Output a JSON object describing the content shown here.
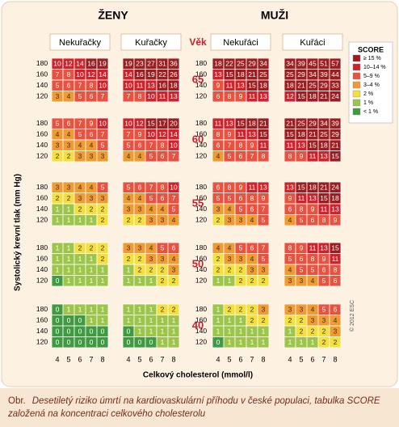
{
  "headers": {
    "women": "ŽENY",
    "men": "MUŽI",
    "age": "Věk"
  },
  "panels": [
    "Nekuřačky",
    "Kuřačky",
    "Nekuřáci",
    "Kuřáci"
  ],
  "ages": [
    65,
    60,
    55,
    50,
    40
  ],
  "bp": [
    180,
    160,
    140,
    120
  ],
  "cholesterol": [
    4,
    5,
    6,
    7,
    8
  ],
  "y_axis_label": "Systolický krevní tlak (mm Hg)",
  "x_axis_label": "Celkový cholesterol (mmol/l)",
  "copyright": "© 2012 ESC",
  "legend": {
    "title": "SCORE",
    "items": [
      {
        "label": "≥ 15 %",
        "min": 15,
        "color": "#9c1c20"
      },
      {
        "label": "10–14 %",
        "min": 10,
        "color": "#d0222a"
      },
      {
        "label": "5–9 %",
        "min": 5,
        "color": "#e8523f"
      },
      {
        "label": "3–4 %",
        "min": 3,
        "color": "#f19a2f"
      },
      {
        "label": "2 %",
        "min": 2,
        "color": "#f5df3c"
      },
      {
        "label": "1 %",
        "min": 1,
        "color": "#9cc54a"
      },
      {
        "label": "< 1 %",
        "min": 0,
        "color": "#3f9a42"
      }
    ]
  },
  "grids": [
    [
      [
        [
          10,
          12,
          14,
          16,
          19
        ],
        [
          7,
          8,
          10,
          12,
          14
        ],
        [
          5,
          6,
          7,
          8,
          10
        ],
        [
          3,
          4,
          5,
          6,
          7
        ]
      ],
      [
        [
          19,
          23,
          27,
          31,
          36
        ],
        [
          14,
          16,
          19,
          22,
          26
        ],
        [
          10,
          11,
          13,
          16,
          18
        ],
        [
          7,
          8,
          10,
          11,
          13
        ]
      ],
      [
        [
          18,
          22,
          25,
          29,
          34
        ],
        [
          13,
          15,
          18,
          21,
          25
        ],
        [
          9,
          11,
          13,
          15,
          18
        ],
        [
          6,
          8,
          9,
          11,
          13
        ]
      ],
      [
        [
          34,
          39,
          45,
          51,
          57
        ],
        [
          25,
          29,
          34,
          39,
          44
        ],
        [
          18,
          21,
          25,
          29,
          33
        ],
        [
          12,
          15,
          18,
          21,
          24
        ]
      ]
    ],
    [
      [
        [
          5,
          6,
          7,
          9,
          10
        ],
        [
          4,
          4,
          5,
          6,
          7
        ],
        [
          3,
          3,
          4,
          4,
          5
        ],
        [
          2,
          2,
          3,
          3,
          3
        ]
      ],
      [
        [
          10,
          12,
          15,
          17,
          20
        ],
        [
          7,
          9,
          10,
          12,
          14
        ],
        [
          5,
          6,
          7,
          8,
          10
        ],
        [
          4,
          4,
          5,
          6,
          7
        ]
      ],
      [
        [
          11,
          13,
          15,
          18,
          21
        ],
        [
          8,
          9,
          11,
          13,
          15
        ],
        [
          6,
          7,
          8,
          9,
          11
        ],
        [
          4,
          5,
          6,
          7,
          8
        ]
      ],
      [
        [
          21,
          25,
          29,
          34,
          39
        ],
        [
          15,
          18,
          21,
          25,
          29
        ],
        [
          11,
          13,
          15,
          18,
          21
        ],
        [
          8,
          9,
          11,
          13,
          15
        ]
      ]
    ],
    [
      [
        [
          3,
          3,
          4,
          4,
          5
        ],
        [
          2,
          2,
          3,
          3,
          3
        ],
        [
          1,
          1,
          2,
          2,
          2
        ],
        [
          1,
          1,
          1,
          1,
          2
        ]
      ],
      [
        [
          5,
          6,
          7,
          8,
          10
        ],
        [
          4,
          4,
          5,
          6,
          7
        ],
        [
          3,
          3,
          4,
          4,
          5
        ],
        [
          2,
          2,
          3,
          3,
          4
        ]
      ],
      [
        [
          6,
          8,
          9,
          11,
          13
        ],
        [
          5,
          5,
          6,
          8,
          9
        ],
        [
          3,
          4,
          5,
          6,
          7
        ],
        [
          2,
          3,
          3,
          4,
          5
        ]
      ],
      [
        [
          13,
          15,
          18,
          21,
          24
        ],
        [
          9,
          11,
          13,
          15,
          18
        ],
        [
          6,
          8,
          9,
          11,
          13
        ],
        [
          4,
          5,
          6,
          8,
          9
        ]
      ]
    ],
    [
      [
        [
          1,
          1,
          2,
          2,
          2
        ],
        [
          1,
          1,
          1,
          1,
          2
        ],
        [
          1,
          1,
          1,
          1,
          1
        ],
        [
          0,
          1,
          1,
          1,
          1
        ]
      ],
      [
        [
          3,
          3,
          4,
          5,
          6
        ],
        [
          2,
          2,
          3,
          3,
          4
        ],
        [
          1,
          2,
          2,
          2,
          3
        ],
        [
          1,
          1,
          1,
          2,
          2
        ]
      ],
      [
        [
          4,
          4,
          5,
          6,
          7
        ],
        [
          2,
          3,
          3,
          4,
          5
        ],
        [
          2,
          2,
          2,
          3,
          3
        ],
        [
          1,
          1,
          2,
          2,
          2
        ]
      ],
      [
        [
          8,
          9,
          11,
          13,
          15
        ],
        [
          5,
          6,
          8,
          9,
          11
        ],
        [
          4,
          5,
          5,
          6,
          8
        ],
        [
          3,
          3,
          4,
          5,
          6
        ]
      ]
    ],
    [
      [
        [
          0,
          1,
          1,
          1,
          1
        ],
        [
          0,
          0,
          0,
          1,
          1
        ],
        [
          0,
          0,
          0,
          0,
          0
        ],
        [
          0,
          0,
          0,
          0,
          0
        ]
      ],
      [
        [
          1,
          1,
          1,
          2,
          2
        ],
        [
          1,
          1,
          1,
          1,
          1
        ],
        [
          0,
          1,
          1,
          1,
          1
        ],
        [
          0,
          0,
          0,
          1,
          1
        ]
      ],
      [
        [
          1,
          2,
          2,
          2,
          3
        ],
        [
          1,
          1,
          1,
          2,
          2
        ],
        [
          1,
          1,
          1,
          1,
          1
        ],
        [
          0,
          1,
          1,
          1,
          1
        ]
      ],
      [
        [
          3,
          3,
          4,
          5,
          6
        ],
        [
          2,
          2,
          3,
          3,
          4
        ],
        [
          1,
          2,
          2,
          2,
          3
        ],
        [
          1,
          1,
          1,
          2,
          2
        ]
      ]
    ]
  ],
  "caption": {
    "prefix": "Obr.",
    "text": "Desetiletý riziko úmrtí na kardiovaskulární příhodu v české populaci, tabulka SCORE založená na koncentraci celkového cholesterolu"
  }
}
